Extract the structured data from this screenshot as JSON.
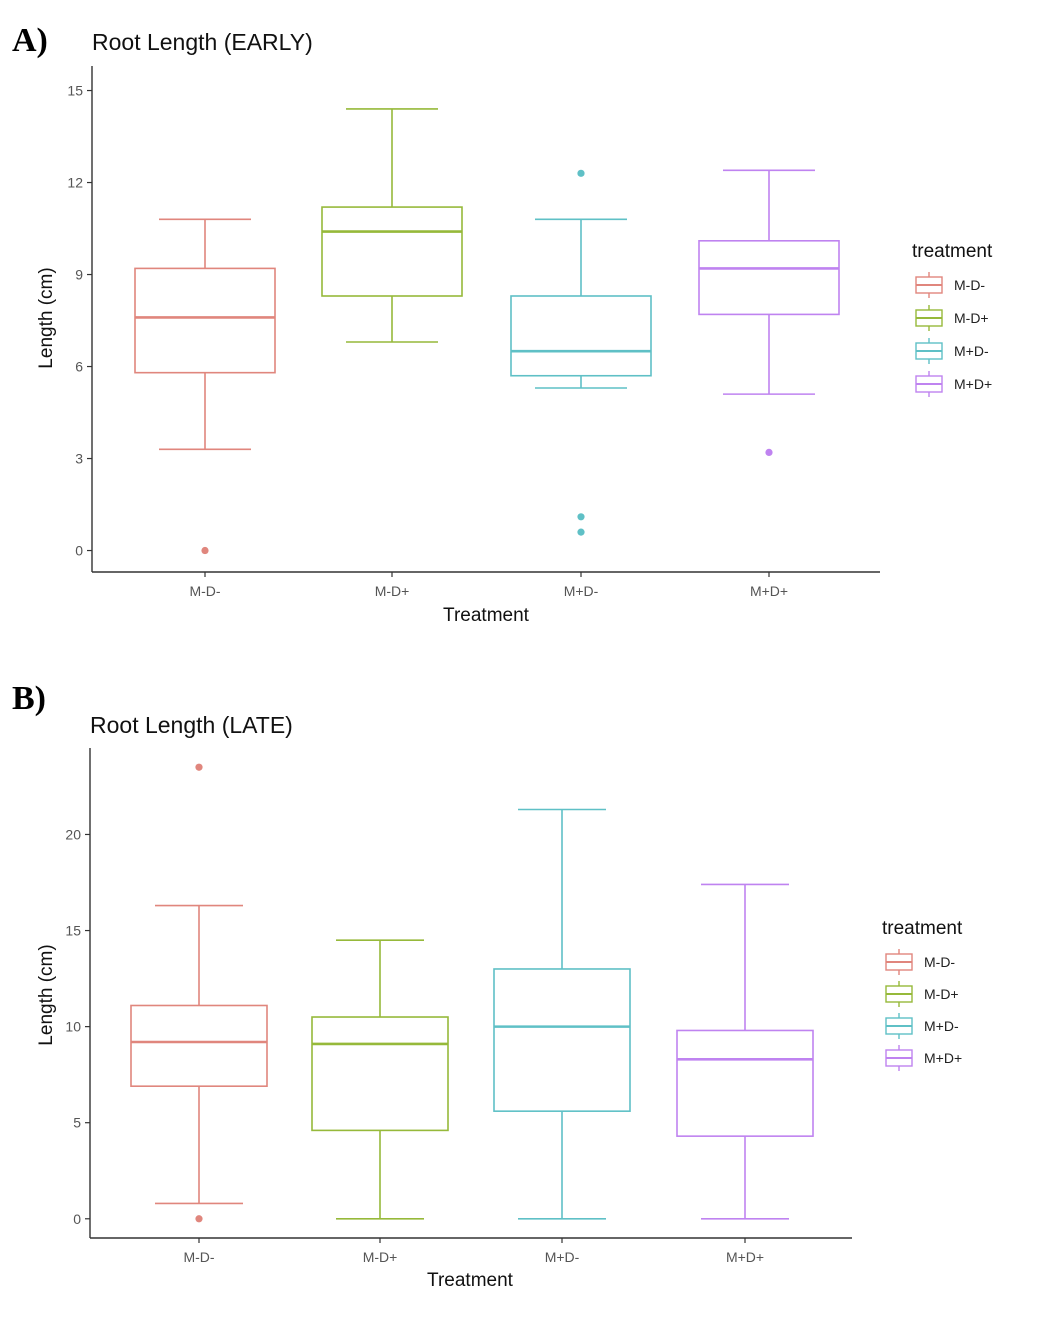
{
  "panels": [
    {
      "letter": "A)"
    },
    {
      "letter": "B)"
    }
  ],
  "colors": {
    "M-D-": "#e0867d",
    "M-D+": "#96b93a",
    "M+D-": "#5fc0c6",
    "M+D+": "#bf83f0"
  },
  "chart_data": [
    {
      "type": "box",
      "title": "Root Length (EARLY)",
      "xlabel": "Treatment",
      "ylabel": "Length (cm)",
      "ylim": [
        -0.7,
        15.8
      ],
      "yticks": [
        0,
        3,
        6,
        9,
        12,
        15
      ],
      "categories": [
        "M-D-",
        "M-D+",
        "M+D-",
        "M+D+"
      ],
      "legend": {
        "title": "treatment",
        "entries": [
          "M-D-",
          "M-D+",
          "M+D-",
          "M+D+"
        ],
        "placement": "right"
      },
      "boxes": [
        {
          "category": "M-D-",
          "whisker_low": 3.3,
          "q1": 5.8,
          "median": 7.6,
          "q3": 9.2,
          "whisker_high": 10.8,
          "outliers": [
            0.0
          ]
        },
        {
          "category": "M-D+",
          "whisker_low": 6.8,
          "q1": 8.3,
          "median": 10.4,
          "q3": 11.2,
          "whisker_high": 14.4,
          "outliers": []
        },
        {
          "category": "M+D-",
          "whisker_low": 5.3,
          "q1": 5.7,
          "median": 6.5,
          "q3": 8.3,
          "whisker_high": 10.8,
          "outliers": [
            12.3,
            1.1,
            0.6
          ]
        },
        {
          "category": "M+D+",
          "whisker_low": 5.1,
          "q1": 7.7,
          "median": 9.2,
          "q3": 10.1,
          "whisker_high": 12.4,
          "outliers": [
            3.2
          ]
        }
      ]
    },
    {
      "type": "box",
      "title": "Root Length (LATE)",
      "xlabel": "Treatment",
      "ylabel": "Length (cm)",
      "ylim": [
        -1.0,
        24.5
      ],
      "yticks": [
        0,
        5,
        10,
        15,
        20
      ],
      "categories": [
        "M-D-",
        "M-D+",
        "M+D-",
        "M+D+"
      ],
      "legend": {
        "title": "treatment",
        "entries": [
          "M-D-",
          "M-D+",
          "M+D-",
          "M+D+"
        ],
        "placement": "right"
      },
      "boxes": [
        {
          "category": "M-D-",
          "whisker_low": 0.8,
          "q1": 6.9,
          "median": 9.2,
          "q3": 11.1,
          "whisker_high": 16.3,
          "outliers": [
            23.5,
            0.0
          ]
        },
        {
          "category": "M-D+",
          "whisker_low": 0.0,
          "q1": 4.6,
          "median": 9.1,
          "q3": 10.5,
          "whisker_high": 14.5,
          "outliers": []
        },
        {
          "category": "M+D-",
          "whisker_low": 0.0,
          "q1": 5.6,
          "median": 10.0,
          "q3": 13.0,
          "whisker_high": 21.3,
          "outliers": []
        },
        {
          "category": "M+D+",
          "whisker_low": 0.0,
          "q1": 4.3,
          "median": 8.3,
          "q3": 9.8,
          "whisker_high": 17.4,
          "outliers": []
        }
      ]
    }
  ]
}
